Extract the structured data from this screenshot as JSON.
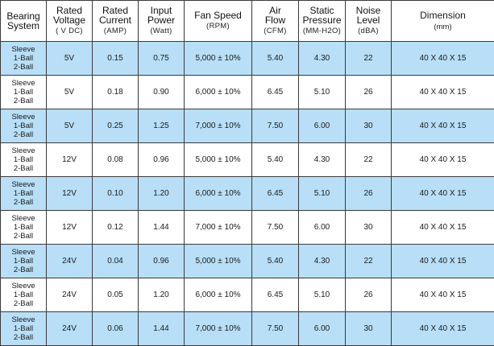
{
  "columns": [
    {
      "main": [
        "Bearing",
        "System"
      ],
      "unit": ""
    },
    {
      "main": [
        "Rated",
        "Voltage"
      ],
      "unit": "( V DC)"
    },
    {
      "main": [
        "Rated",
        "Current"
      ],
      "unit": "(AMP)"
    },
    {
      "main": [
        "Input",
        "Power"
      ],
      "unit": "(Watt)"
    },
    {
      "main": [
        "Fan Speed"
      ],
      "unit": "(RPM)"
    },
    {
      "main": [
        "Air",
        "Flow"
      ],
      "unit": "(CFM)"
    },
    {
      "main": [
        "Static",
        "Pressure"
      ],
      "unit": "(MM-H2O)"
    },
    {
      "main": [
        "Noise",
        "Level"
      ],
      "unit": "(dBA)"
    },
    {
      "main": [
        "Dimension"
      ],
      "unit": "(mm)"
    }
  ],
  "rows": [
    {
      "bearing": [
        "Sleeve",
        "1-Ball",
        "2-Ball"
      ],
      "voltage": "5V",
      "current": "0.15",
      "power": "0.75",
      "speed": "5,000 ± 10%",
      "airflow": "5.40",
      "pressure": "4.30",
      "noise": "22",
      "dimension": "40 X 40 X 15"
    },
    {
      "bearing": [
        "Sleeve",
        "1-Ball",
        "2-Ball"
      ],
      "voltage": "5V",
      "current": "0.18",
      "power": "0.90",
      "speed": "6,000 ± 10%",
      "airflow": "6.45",
      "pressure": "5.10",
      "noise": "26",
      "dimension": "40 X 40 X 15"
    },
    {
      "bearing": [
        "Sleeve",
        "1-Ball",
        "2-Ball"
      ],
      "voltage": "5V",
      "current": "0.25",
      "power": "1.25",
      "speed": "7,000 ± 10%",
      "airflow": "7.50",
      "pressure": "6.00",
      "noise": "30",
      "dimension": "40 X 40 X 15"
    },
    {
      "bearing": [
        "Sleeve",
        "1-Ball",
        "2-Ball"
      ],
      "voltage": "12V",
      "current": "0.08",
      "power": "0.96",
      "speed": "5,000 ± 10%",
      "airflow": "5.40",
      "pressure": "4.30",
      "noise": "22",
      "dimension": "40 X 40 X 15"
    },
    {
      "bearing": [
        "Sleeve",
        "1-Ball",
        "2-Ball"
      ],
      "voltage": "12V",
      "current": "0.10",
      "power": "1.20",
      "speed": "6,000 ± 10%",
      "airflow": "6.45",
      "pressure": "5.10",
      "noise": "26",
      "dimension": "40 X 40 X 15"
    },
    {
      "bearing": [
        "Sleeve",
        "1-Ball",
        "2-Ball"
      ],
      "voltage": "12V",
      "current": "0.12",
      "power": "1.44",
      "speed": "7,000 ± 10%",
      "airflow": "7.50",
      "pressure": "6.00",
      "noise": "30",
      "dimension": "40 X 40 X 15"
    },
    {
      "bearing": [
        "Sleeve",
        "1-Ball",
        "2-Ball"
      ],
      "voltage": "24V",
      "current": "0.04",
      "power": "0.96",
      "speed": "5,000 ± 10%",
      "airflow": "5.40",
      "pressure": "4.30",
      "noise": "22",
      "dimension": "40 X 40 X 15"
    },
    {
      "bearing": [
        "Sleeve",
        "1-Ball",
        "2-Ball"
      ],
      "voltage": "24V",
      "current": "0.05",
      "power": "1.20",
      "speed": "6,000 ± 10%",
      "airflow": "6.45",
      "pressure": "5.10",
      "noise": "26",
      "dimension": "40 X 40 X 15"
    },
    {
      "bearing": [
        "Sleeve",
        "1-Ball",
        "2-Ball"
      ],
      "voltage": "24V",
      "current": "0.06",
      "power": "1.44",
      "speed": "7,000 ± 10%",
      "airflow": "7.50",
      "pressure": "6.00",
      "noise": "30",
      "dimension": "40 X 40 X 15"
    }
  ],
  "colors": {
    "row_shade": "#b8dff7",
    "border": "#3a3a3a"
  }
}
